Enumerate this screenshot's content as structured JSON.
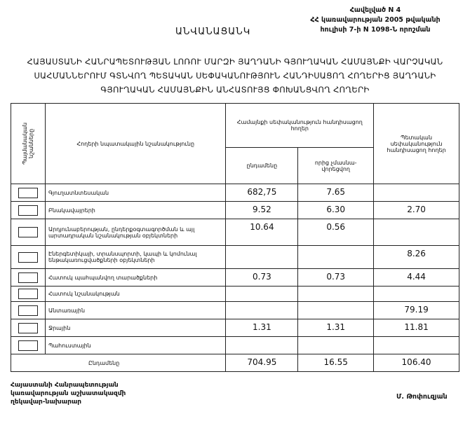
{
  "appendix": {
    "line1": "Հավելված N 4",
    "line2": "ՀՀ կառավարության 2005 թվականի",
    "line3": "հուլիսի 7-ի  N 1098-Ն որոշման"
  },
  "title": "ԱՆՎԱՆԱՑԱՆԿ",
  "heading": "ՀԱՅԱՍՏԱՆԻ ՀԱՆՐԱՊԵՏՈՒԹՅԱՆ ԼՈՌՈՒ ՄԱՐԶԻ ՅԱՂԴԱՆԻ ԳՅՈՒՂԱԿԱՆ ՀԱՄԱՅՆՔԻ ՎԱՐՉԱԿԱՆ ՍԱՀՄԱՆՆԵՐՈՒՄ ԳՏՆՎՈՂ ՊԵՏԱԿԱՆ ՍԵՓԱԿԱՆՈՒԹՅՈՒՆ ՀԱՆԴԻՍԱՑՈՂ ՀՈՂԵՐԻՑ ՅԱՂԴԱՆԻ ԳՅՈՒՂԱԿԱՆ ՀԱՄԱՅՆՔԻՆ ԱՆՀԱՏՈՒՅՑ ՓՈԽԱՆՑՎՈՂ ՀՈՂԵՐԻ",
  "table": {
    "headers": {
      "symbols": "Պայմանական նշանները",
      "purpose": "Հողերի նպատակային նշանակությունը",
      "community": "Համայնքի սեփականություն հանդիսացող հողեր",
      "total": "ընդամենը",
      "non_privatized": "որից չմասնա-վորեցվող",
      "state": "Պետական սեփականություն հանդիսացող հողեր"
    },
    "rows": [
      {
        "label": "Գյուղատնտեսական",
        "total": "682,75",
        "non_privatized": "7.65",
        "state": ""
      },
      {
        "label": "Բնակավայրերի",
        "total": "9.52",
        "non_privatized": "6.30",
        "state": "2.70"
      },
      {
        "label": "Արդյունաբերության, ընդերքօգտագործման և այլ արտադրական նշանակության օբյեկտների",
        "total": "10.64",
        "non_privatized": "0.56",
        "state": ""
      },
      {
        "label": "Էներգետիկայի, տրանսպորտի, կապի և կոմունալ ենթակառուցվածքների օբյեկտների",
        "total": "",
        "non_privatized": "",
        "state": "8.26"
      },
      {
        "label": "Հատուկ պահպանվող տարածքների",
        "total": "0.73",
        "non_privatized": "0.73",
        "state": "4.44"
      },
      {
        "label": "Հատուկ նշանակության",
        "total": "",
        "non_privatized": "",
        "state": ""
      },
      {
        "label": "Անտառային",
        "total": "",
        "non_privatized": "",
        "state": "79.19"
      },
      {
        "label": "Ջրային",
        "total": "1.31",
        "non_privatized": "1.31",
        "state": "11.81"
      },
      {
        "label": "Պահուստային",
        "total": "",
        "non_privatized": "",
        "state": ""
      }
    ],
    "summary": {
      "label": "Ընդամենը",
      "total": "704.95",
      "non_privatized": "16.55",
      "state": "106.40"
    }
  },
  "footer": {
    "position_line1": "Հայաստանի Հանրապետության",
    "position_line2": "կառավարության աշխատակազմի",
    "position_line3": "ղեկավար-նախարար",
    "signatory": "Մ. Թոփուզյան"
  }
}
